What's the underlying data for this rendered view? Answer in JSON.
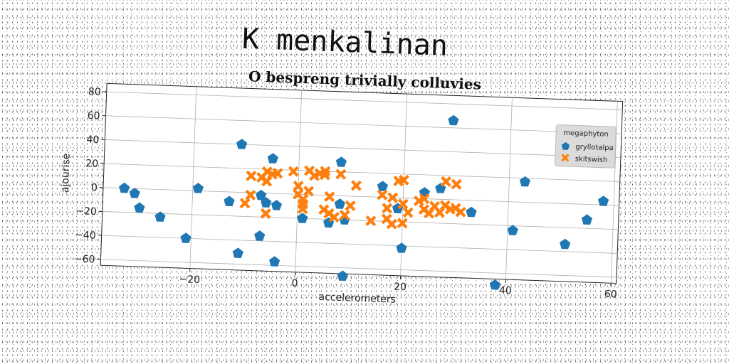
{
  "suptitle": "K menkalinan",
  "chart_data": {
    "type": "scatter",
    "title": "O bespreng trivially colluvies",
    "xlabel": "accelerometers",
    "ylabel": "ajourise",
    "xlim": [
      -37,
      61
    ],
    "ylim": [
      -65,
      87
    ],
    "xticks": [
      -20,
      0,
      20,
      40,
      60
    ],
    "yticks": [
      -60,
      -40,
      -20,
      0,
      20,
      40,
      60,
      80
    ],
    "xtick_labels": [
      "−20",
      "0",
      "20",
      "40",
      "60"
    ],
    "yticks_labels": [
      "−60",
      "−40",
      "−20",
      "0",
      "20",
      "40",
      "60",
      "80"
    ],
    "grid": true,
    "legend": {
      "title": "megaphyton",
      "position": "top-right"
    },
    "series": [
      {
        "name": "gryllotalpa",
        "marker": "pentagon",
        "color": "#1f77b4",
        "points": [
          [
            -33,
            0
          ],
          [
            -31,
            -4
          ],
          [
            -30,
            -16
          ],
          [
            -26,
            -23
          ],
          [
            -21,
            -40
          ],
          [
            -19,
            2
          ],
          [
            -13,
            -8
          ],
          [
            -11,
            40
          ],
          [
            -11,
            -51
          ],
          [
            -7,
            -2
          ],
          [
            -7,
            -36
          ],
          [
            -6,
            -8
          ],
          [
            -5,
            29
          ],
          [
            -4,
            -57
          ],
          [
            -4,
            -10
          ],
          [
            1,
            -20
          ],
          [
            6,
            -23
          ],
          [
            8,
            28
          ],
          [
            8,
            -7
          ],
          [
            9,
            -20
          ],
          [
            9,
            -67
          ],
          [
            16,
            9
          ],
          [
            19,
            -9
          ],
          [
            20,
            -42
          ],
          [
            24,
            5
          ],
          [
            27,
            9
          ],
          [
            29,
            66
          ],
          [
            33,
            -10
          ],
          [
            38,
            -70
          ],
          [
            41,
            -24
          ],
          [
            43,
            17
          ],
          [
            51,
            -34
          ],
          [
            55,
            -13
          ],
          [
            58,
            3
          ]
        ]
      },
      {
        "name": "skitswish",
        "marker": "x",
        "color": "#ff7f0e",
        "points": [
          [
            -10,
            -9
          ],
          [
            -9,
            14
          ],
          [
            -9,
            -2
          ],
          [
            -7,
            13
          ],
          [
            -6,
            18
          ],
          [
            -6,
            -17
          ],
          [
            -6,
            10
          ],
          [
            -5,
            16
          ],
          [
            -4,
            17
          ],
          [
            -1,
            19
          ],
          [
            0,
            7
          ],
          [
            0,
            0
          ],
          [
            1,
            -4
          ],
          [
            1,
            -12
          ],
          [
            1,
            -8
          ],
          [
            2,
            3
          ],
          [
            2,
            20
          ],
          [
            3,
            16
          ],
          [
            4,
            18
          ],
          [
            5,
            -12
          ],
          [
            5,
            17
          ],
          [
            5,
            20
          ],
          [
            6,
            -15
          ],
          [
            6,
            -1
          ],
          [
            7,
            -18
          ],
          [
            8,
            18
          ],
          [
            9,
            -16
          ],
          [
            10,
            -8
          ],
          [
            11,
            9
          ],
          [
            14,
            -20
          ],
          [
            16,
            2
          ],
          [
            17,
            -9
          ],
          [
            17,
            -18
          ],
          [
            18,
            0
          ],
          [
            18,
            -22
          ],
          [
            19,
            14
          ],
          [
            20,
            15
          ],
          [
            20,
            -21
          ],
          [
            20,
            -5
          ],
          [
            21,
            -12
          ],
          [
            23,
            -2
          ],
          [
            24,
            -9
          ],
          [
            24,
            0
          ],
          [
            25,
            -12
          ],
          [
            26,
            -6
          ],
          [
            27,
            -11
          ],
          [
            28,
            -5
          ],
          [
            28,
            15
          ],
          [
            29,
            -8
          ],
          [
            30,
            -7
          ],
          [
            30,
            13
          ],
          [
            31,
            -10
          ]
        ]
      }
    ]
  }
}
